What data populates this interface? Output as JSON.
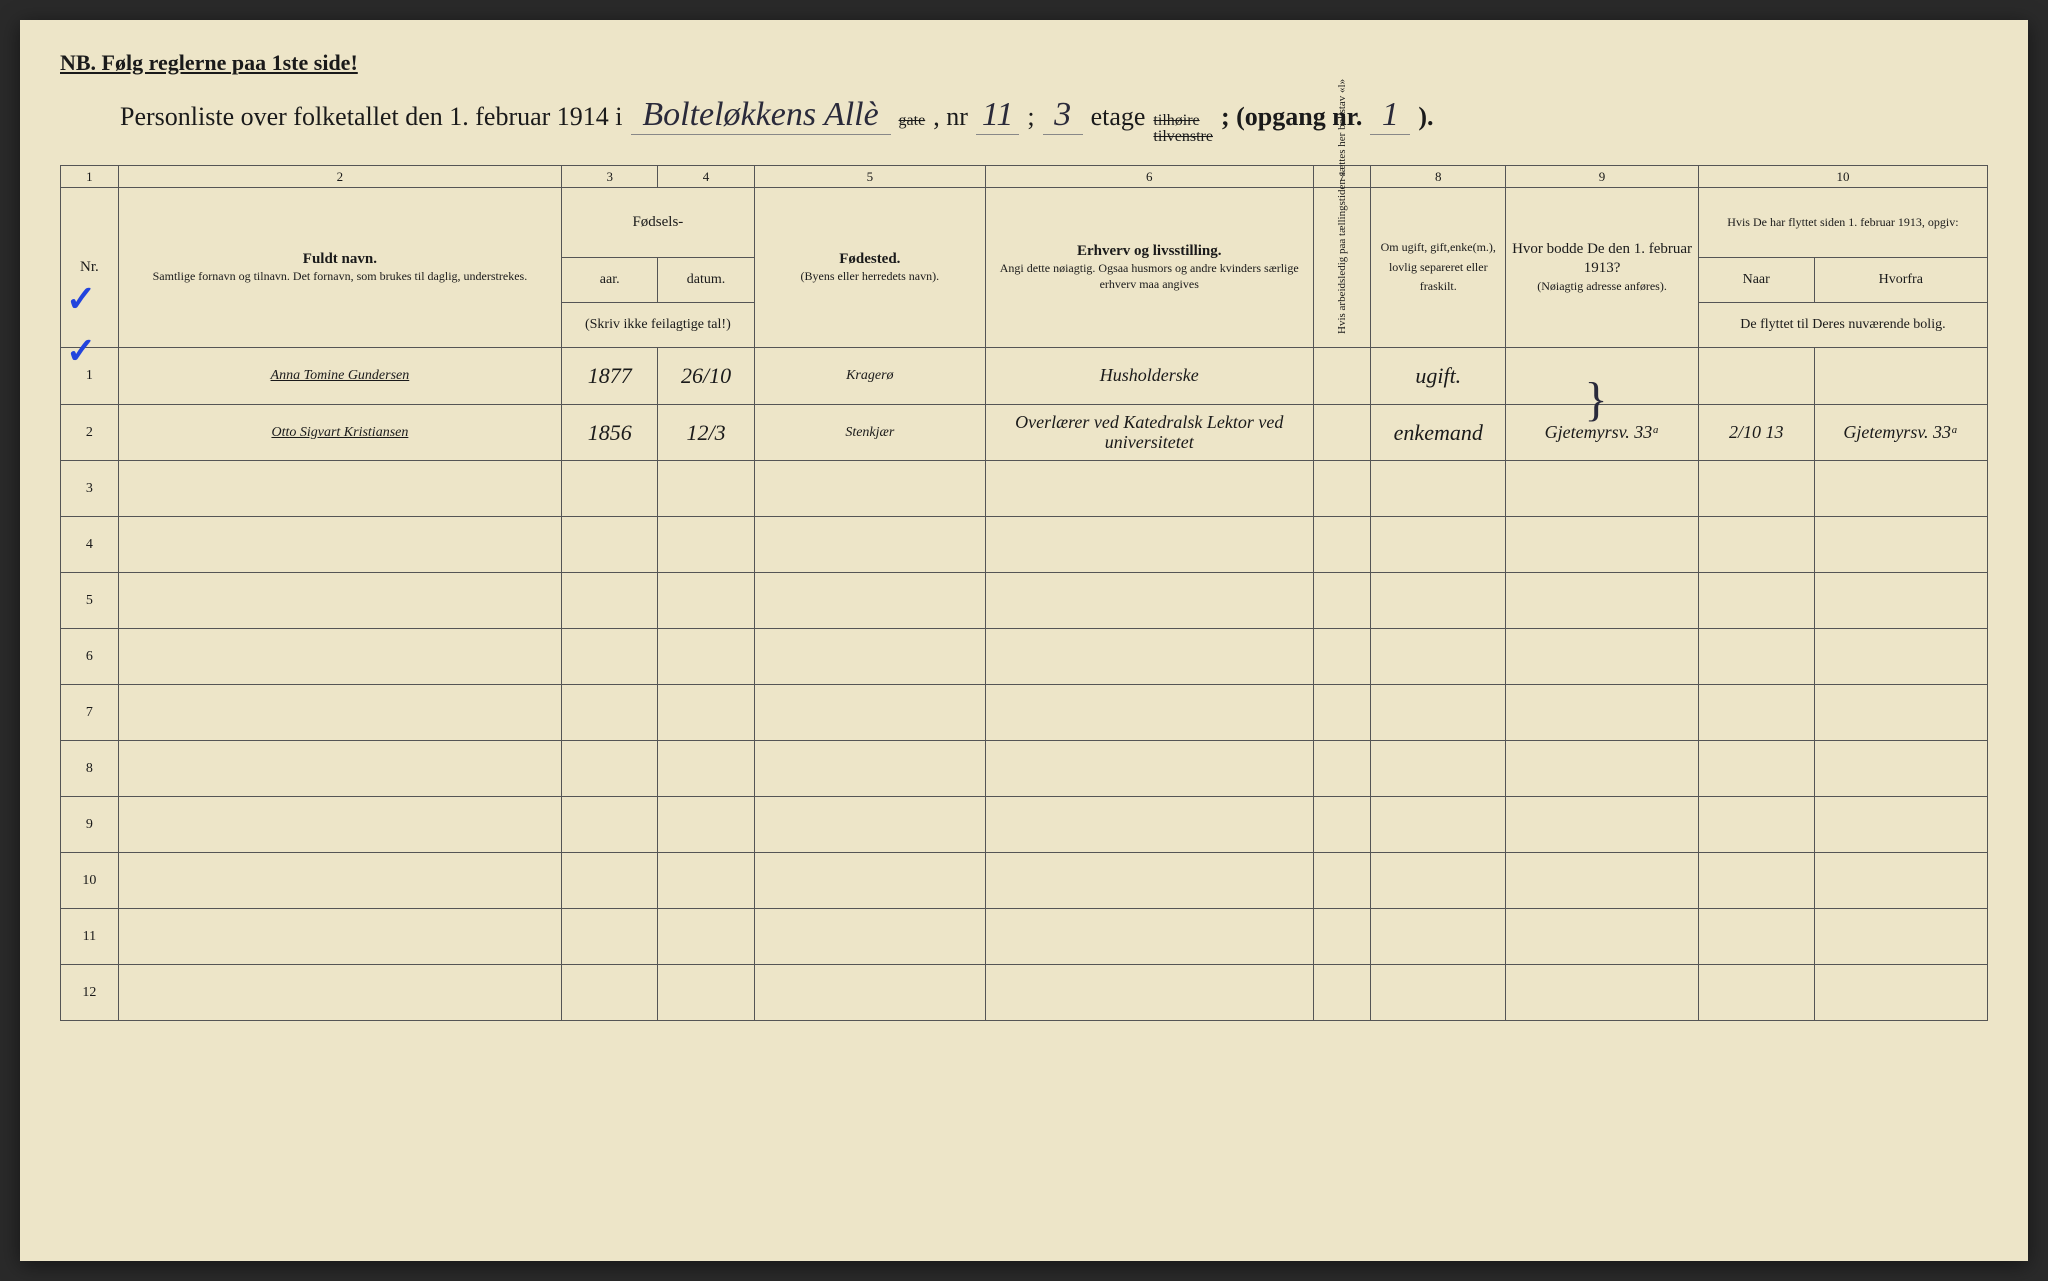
{
  "header_note": "NB.  Følg reglerne paa 1ste side!",
  "title": {
    "prefix": "Personliste over folketallet den 1. februar 1914 i",
    "street": "Bolteløkkens Allè",
    "gate_crossed": "gate",
    "nr_label": ", nr",
    "nr": "11",
    "semicolon": ";",
    "etage": "3",
    "etage_label": "etage",
    "tilhoire": "tilhøire",
    "tilvenstre": "tilvenstre",
    "opgang_label": "; (opgang nr.",
    "opgang": "1",
    "close": ")."
  },
  "colnums": [
    "1",
    "2",
    "3",
    "4",
    "5",
    "6",
    "7",
    "8",
    "9",
    "10"
  ],
  "headers": {
    "nr": "Nr.",
    "name_title": "Fuldt navn.",
    "name_sub": "Samtlige fornavn og tilnavn.  Det fornavn, som brukes til daglig, understrekes.",
    "fodsels": "Fødsels-",
    "aar": "aar.",
    "datum": "datum.",
    "fodsels_note": "(Skriv ikke feilagtige tal!)",
    "fodested": "Fødested.",
    "fodested_sub": "(Byens eller herredets navn).",
    "erhverv": "Erhverv og livsstilling.",
    "erhverv_sub": "Angi dette nøiagtig. Ogsaa husmors og andre kvinders særlige erhverv maa angives",
    "col7": "Hvis arbeidsledig paa tællingstiden sættes her bokstav «l»",
    "col8": "Om ugift, gift,enke(m.), lovlig separeret eller fraskilt.",
    "col9": "Hvor bodde De den 1. februar 1913?",
    "col9_sub": "(Nøiagtig adresse anføres).",
    "col10": "Hvis De har flyttet siden 1. februar 1913, opgiv:",
    "col10_naar": "Naar",
    "col10_hvorfra": "Hvorfra",
    "col10_sub": "De flyttet til Deres nuværende bolig."
  },
  "rows": [
    {
      "nr": "1",
      "check": true,
      "navn": "Anna Tomine Gundersen",
      "aar": "1877",
      "datum": "26/10",
      "fodested": "Kragerø",
      "erhverv": "Husholderske",
      "col7": "",
      "ugift": "ugift.",
      "bodde": "",
      "naar": "",
      "hvorfra": ""
    },
    {
      "nr": "2",
      "check": true,
      "navn": "Otto Sigvart Kristiansen",
      "aar": "1856",
      "datum": "12/3",
      "fodested": "Stenkjær",
      "erhverv": "Overlærer ved Katedralsk Lektor ved universitetet",
      "col7": "",
      "ugift": "enkemand",
      "bodde": "Gjetemyrsv. 33ᵃ",
      "naar": "2/10 13",
      "hvorfra": "Gjetemyrsv. 33ᵃ"
    },
    {
      "nr": "3"
    },
    {
      "nr": "4"
    },
    {
      "nr": "5"
    },
    {
      "nr": "6"
    },
    {
      "nr": "7"
    },
    {
      "nr": "8"
    },
    {
      "nr": "9"
    },
    {
      "nr": "10"
    },
    {
      "nr": "11"
    },
    {
      "nr": "12"
    }
  ],
  "colors": {
    "paper": "#ede5c8",
    "ink": "#1a1a1a",
    "hand_ink": "#2a2a3a",
    "check_blue": "#2244dd",
    "border": "#555"
  },
  "table": {
    "col_widths_pct": [
      3,
      23,
      5,
      5,
      12,
      17,
      3,
      7,
      10,
      15
    ]
  }
}
